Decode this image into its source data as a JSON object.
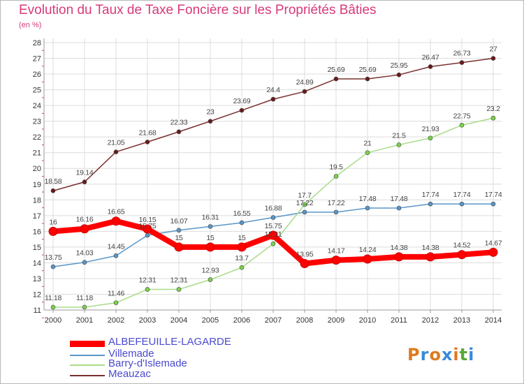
{
  "title": "Evolution du Taux de Taxe Foncière sur les Propriétés Bâties",
  "subtitle": "(en %)",
  "logo": {
    "text": "Proxiti",
    "colors": [
      "#e07a1f",
      "#3a8ad6",
      "#e07a1f",
      "#3a8ad6",
      "#e07a1f",
      "#5aa832",
      "#3a8ad6"
    ]
  },
  "chart_data": {
    "type": "line",
    "title": "Evolution du Taux de Taxe Foncière sur les Propriétés Bâties",
    "ylabel": "(en %)",
    "x": [
      2000,
      2001,
      2002,
      2003,
      2004,
      2005,
      2006,
      2007,
      2008,
      2009,
      2010,
      2011,
      2012,
      2013,
      2014
    ],
    "ylim": [
      11,
      28
    ],
    "yticks": [
      11,
      12,
      13,
      14,
      15,
      16,
      17,
      18,
      19,
      20,
      21,
      22,
      23,
      24,
      25,
      26,
      27,
      28
    ],
    "grid": true,
    "legend_position": "bottom-left",
    "series": [
      {
        "name": "ALBEFEUILLE-LAGARDE",
        "color": "#ff0000",
        "marker": "#ff0000",
        "values": [
          16,
          16.16,
          16.65,
          16.15,
          15,
          15,
          15,
          15.75,
          13.95,
          14.17,
          14.24,
          14.38,
          14.38,
          14.52,
          14.67
        ]
      },
      {
        "name": "Villemade",
        "color": "#5a96c8",
        "marker": "#5a96c8",
        "values": [
          13.75,
          14.03,
          14.45,
          15.75,
          16.07,
          16.31,
          16.55,
          16.88,
          17.22,
          17.22,
          17.48,
          17.48,
          17.74,
          17.74,
          17.74
        ]
      },
      {
        "name": "Barry-d'Islemade",
        "color": "#a8dc88",
        "marker": "#7ad24a",
        "values": [
          11.18,
          11.18,
          11.46,
          12.31,
          12.31,
          12.93,
          13.7,
          15.21,
          17.7,
          19.5,
          21,
          21.5,
          21.93,
          22.75,
          23.2
        ]
      },
      {
        "name": "Meauzac",
        "color": "#7a3030",
        "marker": "#6a1a1a",
        "values": [
          18.58,
          19.14,
          21.05,
          21.68,
          22.33,
          23,
          23.69,
          24.4,
          24.89,
          25.69,
          25.69,
          25.95,
          26.47,
          26.73,
          27
        ]
      }
    ]
  }
}
